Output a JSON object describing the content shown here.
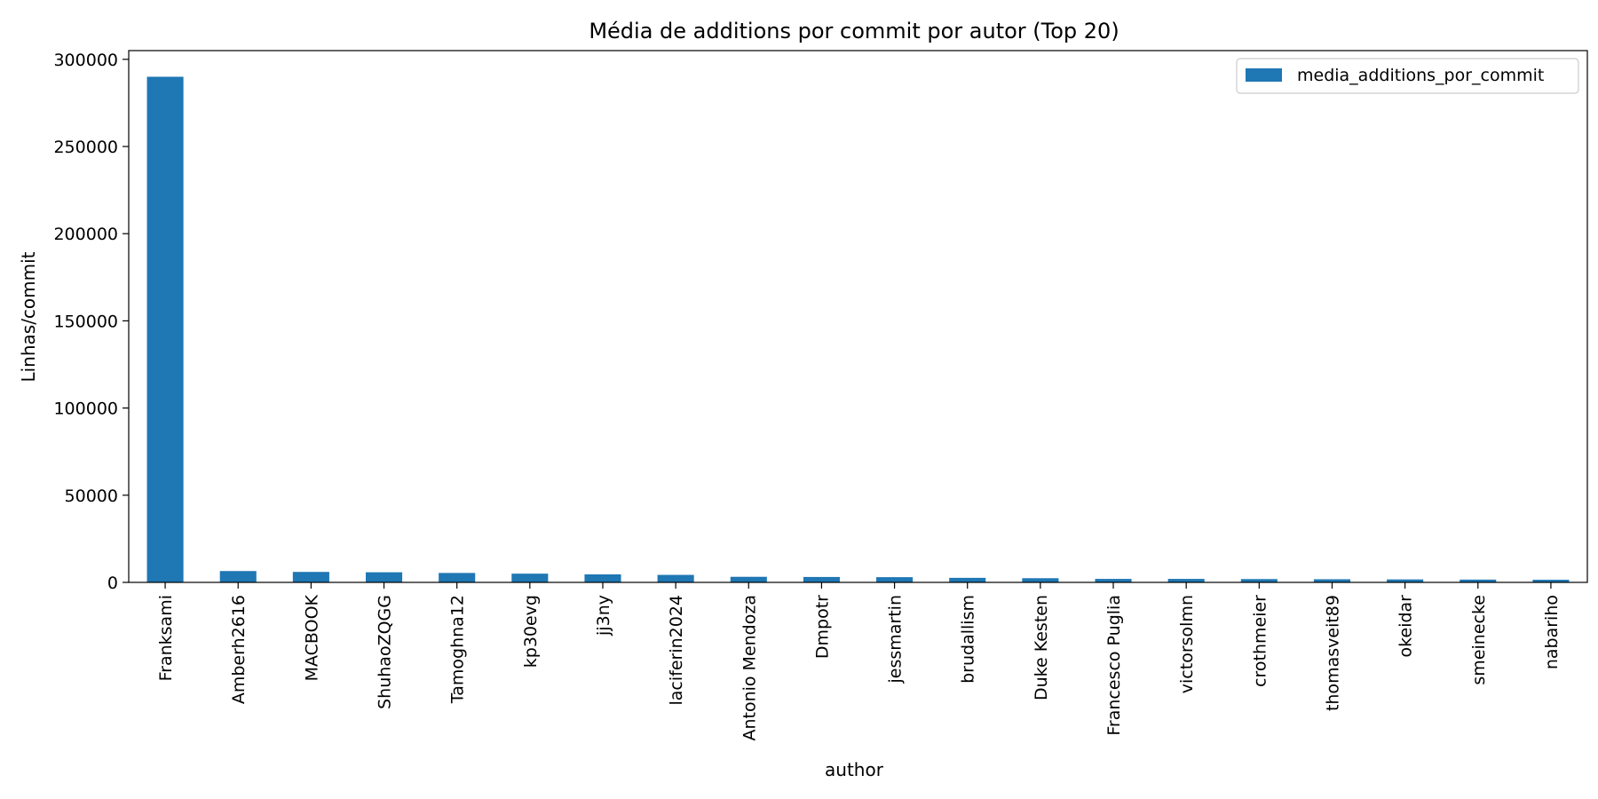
{
  "chart_data": {
    "type": "bar",
    "title": "Média de additions por commit por autor (Top 20)",
    "xlabel": "author",
    "ylabel": "Linhas/commit",
    "categories": [
      "Franksami",
      "Amberh2616",
      "MACBOOK",
      "ShuhaoZQGG",
      "Tamoghna12",
      "kp30evg",
      "jj3ny",
      "laciferin2024",
      "Antonio Mendoza",
      "Dmpotr",
      "jessmartin",
      "brudallism",
      "Duke Kesten",
      "Francesco Puglia",
      "victorsolmn",
      "crothmeier",
      "thomasveit89",
      "okeidar",
      "smeinecke",
      "nabariho"
    ],
    "series": [
      {
        "name": "media_additions_por_commit",
        "values": [
          290000,
          6500,
          6000,
          5800,
          5400,
          5000,
          4600,
          4300,
          3200,
          3100,
          3000,
          2600,
          2400,
          2000,
          2000,
          1900,
          1800,
          1700,
          1600,
          1500
        ]
      }
    ],
    "ylim": [
      0,
      305000
    ],
    "yticks": [
      0,
      50000,
      100000,
      150000,
      200000,
      250000,
      300000
    ],
    "grid": false,
    "legend_position": "top-right",
    "colors": {
      "bar": "#1f77b4",
      "axis": "#000000",
      "text": "#000000",
      "legend_border": "#cccccc"
    }
  }
}
